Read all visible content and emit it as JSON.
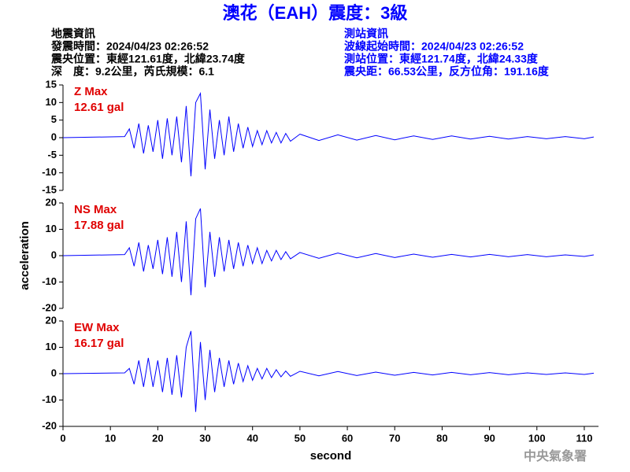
{
  "header": {
    "title": "澳花（EAH）震度：3級",
    "left": [
      "地震資訊",
      "發震時間：2024/04/23 02:26:52",
      "震央位置：東經121.61度，北緯23.74度",
      "深　度：9.2公里，芮氏規模：6.1"
    ],
    "right": [
      "測站資訊",
      "波線起始時間：2024/04/23 02:26:52",
      "測站位置：東經121.74度，北緯24.33度",
      "震央距：66.53公里，反方位角：191.16度"
    ],
    "footer": "中央氣象署"
  },
  "chart_data": [
    {
      "type": "line",
      "annotation": [
        "Z Max",
        "12.61 gal"
      ],
      "xlim": [
        0,
        113
      ],
      "ylim": [
        -15,
        15
      ],
      "yticks": [
        -15,
        -10,
        -5,
        0,
        5,
        10,
        15
      ],
      "x": [
        0,
        13,
        14,
        15,
        16,
        17,
        18,
        19,
        20,
        21,
        22,
        23,
        24,
        25,
        26,
        27,
        28,
        29,
        30,
        31,
        32,
        33,
        34,
        35,
        36,
        37,
        38,
        39,
        40,
        41,
        42,
        43,
        44,
        45,
        46,
        47,
        48,
        50,
        54,
        58,
        62,
        66,
        70,
        74,
        78,
        82,
        86,
        90,
        94,
        98,
        102,
        106,
        110,
        112
      ],
      "series": [
        {
          "color": "#0000ff",
          "values": [
            0,
            0.3,
            2.5,
            -3,
            4,
            -4.5,
            3.5,
            -4,
            5,
            -6,
            5.5,
            -5,
            6,
            -7,
            9,
            -11,
            10,
            12.61,
            -9,
            8,
            -6,
            5,
            -5,
            6,
            -4,
            4,
            -3,
            3,
            -2.5,
            2,
            -2,
            2,
            -1.5,
            1.5,
            -1.5,
            1.2,
            -1,
            1,
            -0.8,
            0.8,
            -0.7,
            0.6,
            -0.6,
            0.5,
            -0.5,
            0.5,
            -0.4,
            0.4,
            -0.4,
            0.3,
            -0.3,
            0.3,
            -0.3,
            0.2
          ]
        }
      ]
    },
    {
      "type": "line",
      "annotation": [
        "NS Max",
        "17.88 gal"
      ],
      "ylabel": "acceleration",
      "xlim": [
        0,
        113
      ],
      "ylim": [
        -20,
        20
      ],
      "yticks": [
        -20,
        -10,
        0,
        10,
        20
      ],
      "x": [
        0,
        13,
        14,
        15,
        16,
        17,
        18,
        19,
        20,
        21,
        22,
        23,
        24,
        25,
        26,
        27,
        28,
        29,
        30,
        31,
        32,
        33,
        34,
        35,
        36,
        37,
        38,
        39,
        40,
        41,
        42,
        43,
        44,
        45,
        46,
        47,
        48,
        50,
        54,
        58,
        62,
        66,
        70,
        74,
        78,
        82,
        86,
        90,
        94,
        98,
        102,
        106,
        110,
        112
      ],
      "series": [
        {
          "color": "#0000ff",
          "values": [
            0,
            0.4,
            3,
            -4,
            5,
            -6,
            4,
            -5,
            6,
            -7,
            7,
            -8,
            9,
            -10,
            13,
            -15,
            14,
            17.88,
            -12,
            9,
            -8,
            7,
            -6,
            6,
            -5,
            5,
            -4,
            4,
            -3,
            3,
            -3,
            2,
            -2,
            2,
            -1.5,
            1.5,
            -1.2,
            1.2,
            -1,
            1,
            -0.8,
            0.8,
            -0.7,
            0.6,
            -0.6,
            0.5,
            -0.5,
            0.5,
            -0.4,
            0.4,
            -0.4,
            0.3,
            -0.3,
            0.3
          ]
        }
      ]
    },
    {
      "type": "line",
      "annotation": [
        "EW Max",
        "16.17 gal"
      ],
      "xlabel": "second",
      "xlim": [
        0,
        113
      ],
      "xticks": [
        0,
        10,
        20,
        30,
        40,
        50,
        60,
        70,
        80,
        90,
        100,
        110
      ],
      "ylim": [
        -20,
        20
      ],
      "yticks": [
        -20,
        -10,
        0,
        10,
        20
      ],
      "x": [
        0,
        13,
        14,
        15,
        16,
        17,
        18,
        19,
        20,
        21,
        22,
        23,
        24,
        25,
        26,
        27,
        28,
        29,
        30,
        31,
        32,
        33,
        34,
        35,
        36,
        37,
        38,
        39,
        40,
        41,
        42,
        43,
        44,
        45,
        46,
        47,
        48,
        50,
        54,
        58,
        62,
        66,
        70,
        74,
        78,
        82,
        86,
        90,
        94,
        98,
        102,
        106,
        110,
        112
      ],
      "series": [
        {
          "color": "#0000ff",
          "values": [
            0,
            0.3,
            2,
            -4,
            5,
            -5,
            6,
            -5,
            5,
            -7,
            6,
            -8,
            7,
            -9,
            10,
            16.17,
            -14.5,
            12,
            -10,
            9,
            -7,
            6,
            -5,
            5,
            -4,
            4,
            -3,
            3,
            -2.5,
            2,
            -2,
            2,
            -1.5,
            1.5,
            -1.2,
            1,
            -1,
            0.9,
            -0.8,
            0.8,
            -0.7,
            0.6,
            -0.6,
            0.5,
            -0.5,
            0.5,
            -0.4,
            0.4,
            -0.4,
            0.3,
            -0.3,
            0.3,
            -0.3,
            0.2
          ]
        }
      ]
    }
  ]
}
